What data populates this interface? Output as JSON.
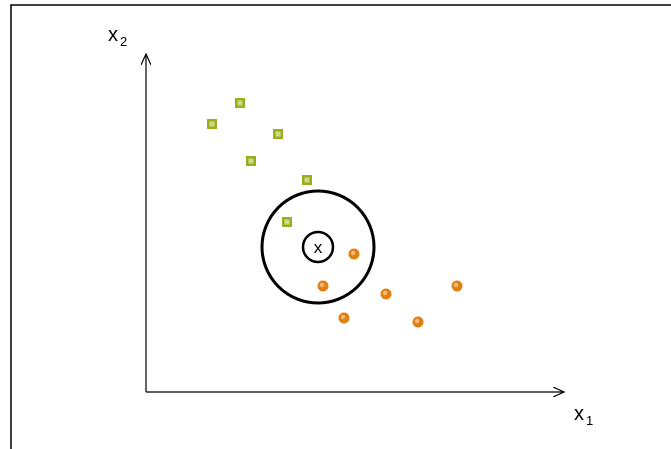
{
  "diagram": {
    "x_axis_label": "x",
    "x_axis_subscript": "1",
    "y_axis_label": "x",
    "y_axis_subscript": "2",
    "query_label": "x",
    "colors": {
      "class_square_fill": "#9aad1d",
      "class_square_center": "#cfd98a",
      "class_circle_fill": "#e07f12",
      "class_circle_center": "#f4b97a",
      "outline": "#000000"
    }
  }
}
